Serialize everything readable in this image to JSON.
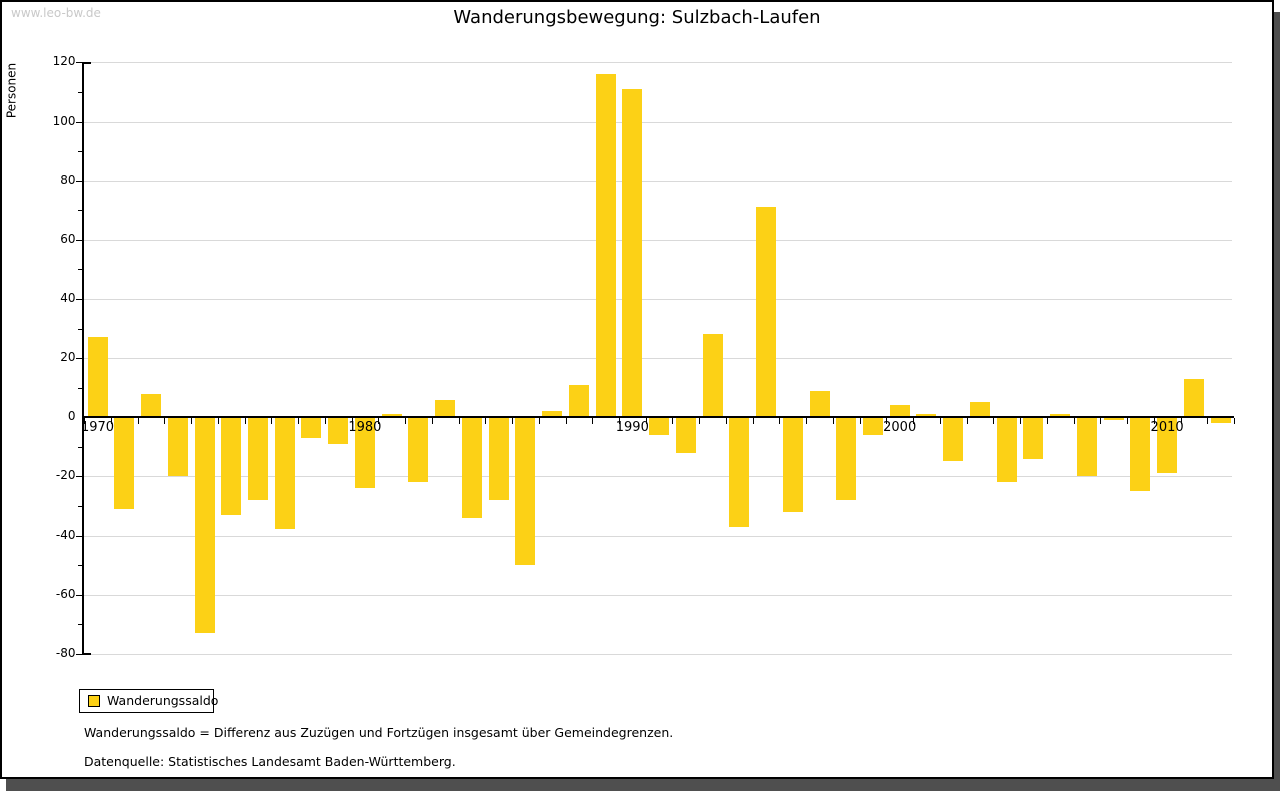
{
  "page": {
    "watermark": "www.leo-bw.de",
    "title": "Wanderungsbewegung: Sulzbach-Laufen",
    "footnote_definition": "Wanderungssaldo = Differenz aus Zuzügen und Fortzügen insgesamt über Gemeindegrenzen.",
    "footnote_source": "Datenquelle: Statistisches Landesamt Baden-Württemberg."
  },
  "legend": {
    "label": "Wanderungssaldo",
    "swatch_color": "#fcd116"
  },
  "chart_data": {
    "type": "bar",
    "title": "Wanderungsbewegung: Sulzbach-Laufen",
    "xlabel": "",
    "ylabel": "Personen",
    "ylim": [
      -80,
      120
    ],
    "y_labeled_tick_step": 20,
    "y_minor_tick_step": 10,
    "grid": "horizontal-lines-at-labeled-ticks",
    "legend_position": "bottom-left",
    "x_labeled_years": [
      1970,
      1980,
      1990,
      2000,
      2010
    ],
    "categories": [
      1970,
      1971,
      1972,
      1973,
      1974,
      1975,
      1976,
      1977,
      1978,
      1979,
      1980,
      1981,
      1982,
      1983,
      1984,
      1985,
      1986,
      1987,
      1988,
      1989,
      1990,
      1991,
      1992,
      1993,
      1994,
      1995,
      1996,
      1997,
      1998,
      1999,
      2000,
      2001,
      2002,
      2003,
      2004,
      2005,
      2006,
      2007,
      2008,
      2009,
      2010,
      2011,
      2012
    ],
    "series": [
      {
        "name": "Wanderungssaldo",
        "color": "#fcd116",
        "values": [
          27,
          -31,
          8,
          -20,
          -73,
          -33,
          -28,
          -38,
          -7,
          -9,
          -24,
          1,
          -22,
          6,
          -34,
          -28,
          -50,
          2,
          11,
          116,
          111,
          -6,
          -12,
          28,
          -37,
          71,
          -32,
          9,
          -28,
          -6,
          4,
          1,
          -15,
          5,
          -22,
          -14,
          1,
          -20,
          -1,
          -25,
          -19,
          13,
          -2
        ]
      }
    ],
    "colors": {
      "bar": "#fcd116",
      "grid": "#d9d9d9",
      "axis": "#000000"
    }
  }
}
